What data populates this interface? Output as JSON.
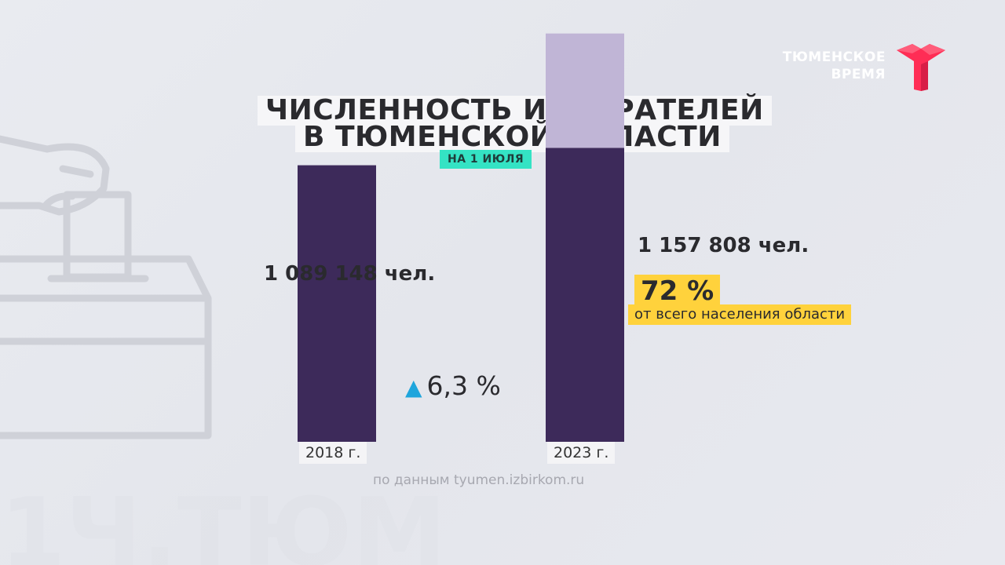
{
  "logo": {
    "line1": "ТЮМЕНСКОЕ",
    "line2": "ВРЕМЯ",
    "color": "#ff2d55"
  },
  "title": {
    "line1": "ЧИСЛЕННОСТЬ ИЗБИРАТЕЛЕЙ",
    "line2": "В ТЮМЕНСКОЙ ОБЛАСТИ"
  },
  "subtitle": "НА 1 ИЮЛЯ",
  "chart_data": {
    "type": "bar",
    "categories": [
      "2018 г.",
      "2023 г."
    ],
    "values": [
      1089148,
      1157808
    ],
    "value_labels": [
      "1 089 148 чел.",
      "1 157 808 чел."
    ],
    "ylim": [
      0,
      1400000
    ],
    "grid": false,
    "growth": {
      "label": "6,3 %",
      "direction": "up"
    },
    "share": {
      "percent": 72,
      "label": "72 %",
      "description": "от всего населения области"
    },
    "colors": {
      "bar": "#3d2a5a",
      "bar_remainder": "#c0b5d6",
      "growth_arrow": "#1ea5dc",
      "highlight": "#ffd23c"
    }
  },
  "source": "по данным tyumen.izbirkom.ru"
}
